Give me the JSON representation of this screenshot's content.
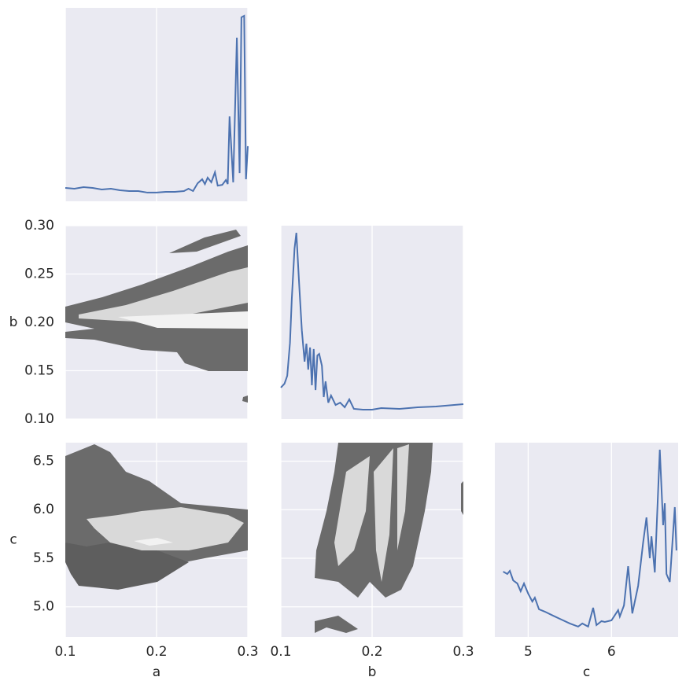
{
  "chart_data": [
    {
      "type": "line",
      "xlim": [
        0.1,
        0.3
      ],
      "ylim": [
        0,
        1
      ],
      "xticks": [
        0.1,
        0.2,
        0.3
      ],
      "color": "#4c72b0",
      "grid": true,
      "x": [
        0.1,
        0.11,
        0.12,
        0.13,
        0.14,
        0.15,
        0.16,
        0.17,
        0.18,
        0.19,
        0.2,
        0.21,
        0.22,
        0.23,
        0.235,
        0.24,
        0.245,
        0.25,
        0.253,
        0.256,
        0.26,
        0.264,
        0.267,
        0.272,
        0.276,
        0.278,
        0.28,
        0.284,
        0.288,
        0.291,
        0.293,
        0.296,
        0.298,
        0.3
      ],
      "values": [
        0.069,
        0.065,
        0.073,
        0.069,
        0.061,
        0.065,
        0.057,
        0.053,
        0.053,
        0.045,
        0.045,
        0.049,
        0.049,
        0.053,
        0.065,
        0.053,
        0.093,
        0.114,
        0.089,
        0.122,
        0.098,
        0.15,
        0.081,
        0.085,
        0.11,
        0.089,
        0.439,
        0.098,
        0.846,
        0.146,
        0.951,
        0.959,
        0.114,
        0.285
      ]
    },
    {
      "type": "contour",
      "xlim": [
        0.1,
        0.3
      ],
      "ylim": [
        0.1,
        0.3
      ],
      "xticks": [
        0.1,
        0.2,
        0.3
      ],
      "yticks": [
        {
          "value": 0.1,
          "label": "0.10"
        },
        0.15,
        {
          "value": 0.2,
          "label": "0.20"
        },
        0.25,
        {
          "value": 0.3,
          "label": "0.30"
        }
      ],
      "ylabel": "b",
      "grid": true
    },
    {
      "type": "contour",
      "xlim": [
        0.1,
        0.3
      ],
      "ylim": [
        4.69,
        6.69
      ],
      "xticks": [
        0.1,
        0.2,
        0.3
      ],
      "yticks": [
        {
          "value": 5,
          "label": "5.0"
        },
        5.5,
        {
          "value": 6,
          "label": "6.0"
        },
        6.5
      ],
      "xlabel": "a",
      "ylabel": "c",
      "grid": true
    },
    {
      "type": "line",
      "xlim": [
        0.1,
        0.3
      ],
      "ylim": [
        0,
        1
      ],
      "xticks": [
        0.1,
        0.2,
        0.3
      ],
      "color": "#4c72b0",
      "grid": true,
      "x": [
        0.1,
        0.104,
        0.107,
        0.11,
        0.112,
        0.115,
        0.117,
        0.12,
        0.123,
        0.126,
        0.128,
        0.13,
        0.132,
        0.134,
        0.136,
        0.138,
        0.14,
        0.142,
        0.145,
        0.147,
        0.149,
        0.152,
        0.155,
        0.16,
        0.165,
        0.17,
        0.175,
        0.18,
        0.19,
        0.2,
        0.21,
        0.23,
        0.25,
        0.27,
        0.3
      ],
      "values": [
        0.163,
        0.183,
        0.224,
        0.394,
        0.622,
        0.882,
        0.963,
        0.703,
        0.459,
        0.297,
        0.39,
        0.256,
        0.37,
        0.175,
        0.362,
        0.15,
        0.329,
        0.337,
        0.276,
        0.114,
        0.195,
        0.085,
        0.122,
        0.073,
        0.085,
        0.061,
        0.102,
        0.053,
        0.049,
        0.049,
        0.057,
        0.053,
        0.061,
        0.065,
        0.077
      ]
    },
    {
      "type": "contour",
      "xlim": [
        0.1,
        0.3
      ],
      "ylim": [
        4.69,
        6.69
      ],
      "xticks": [
        0.1,
        0.2,
        0.3
      ],
      "yticks": [
        5,
        5.5,
        6,
        6.5
      ],
      "xlabel": "b",
      "grid": true
    },
    {
      "type": "line",
      "xlim": [
        4.6,
        6.8
      ],
      "ylim": [
        0,
        1
      ],
      "xticks": [
        5,
        6
      ],
      "xlabel": "c",
      "color": "#4c72b0",
      "grid": true,
      "x": [
        4.7,
        4.75,
        4.78,
        4.82,
        4.87,
        4.91,
        4.95,
        5,
        5.05,
        5.08,
        5.13,
        5.2,
        5.3,
        5.4,
        5.5,
        5.6,
        5.65,
        5.72,
        5.78,
        5.82,
        5.88,
        5.92,
        6,
        6.08,
        6.1,
        6.15,
        6.2,
        6.25,
        6.32,
        6.38,
        6.42,
        6.46,
        6.48,
        6.52,
        6.58,
        6.62,
        6.64,
        6.66,
        6.7,
        6.76,
        6.78
      ],
      "values": [
        0.336,
        0.324,
        0.34,
        0.291,
        0.275,
        0.235,
        0.275,
        0.223,
        0.182,
        0.202,
        0.142,
        0.13,
        0.109,
        0.089,
        0.069,
        0.053,
        0.069,
        0.053,
        0.15,
        0.061,
        0.081,
        0.077,
        0.085,
        0.138,
        0.105,
        0.162,
        0.364,
        0.121,
        0.263,
        0.486,
        0.615,
        0.405,
        0.518,
        0.332,
        0.964,
        0.575,
        0.688,
        0.324,
        0.283,
        0.668,
        0.445
      ]
    }
  ]
}
